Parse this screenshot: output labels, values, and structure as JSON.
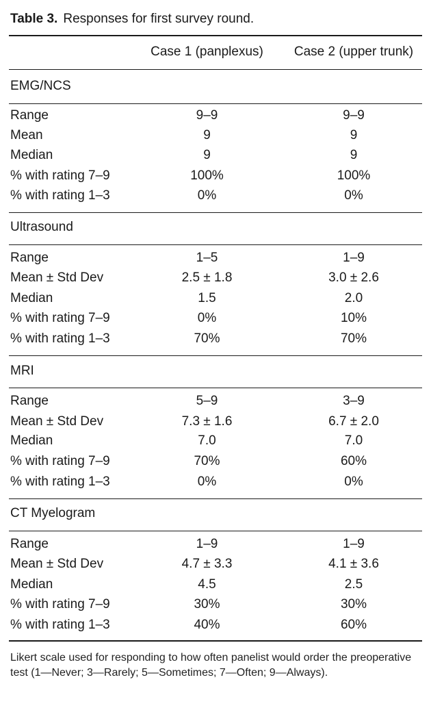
{
  "caption": {
    "label": "Table 3.",
    "text": "Responses for first survey round."
  },
  "columns": [
    "Case 1 (panplexus)",
    "Case 2 (upper trunk)"
  ],
  "sections": [
    {
      "title": "EMG/NCS",
      "rows": [
        {
          "label": "Range",
          "case1": "9–9",
          "case2": "9–9"
        },
        {
          "label": "Mean",
          "case1": "9",
          "case2": "9"
        },
        {
          "label": "Median",
          "case1": "9",
          "case2": "9"
        },
        {
          "label": "% with rating 7–9",
          "case1": "100%",
          "case2": "100%"
        },
        {
          "label": "% with rating 1–3",
          "case1": "0%",
          "case2": "0%"
        }
      ]
    },
    {
      "title": "Ultrasound",
      "rows": [
        {
          "label": "Range",
          "case1": "1–5",
          "case2": "1–9"
        },
        {
          "label": "Mean ± Std Dev",
          "case1": "2.5 ± 1.8",
          "case2": "3.0 ± 2.6"
        },
        {
          "label": "Median",
          "case1": "1.5",
          "case2": "2.0"
        },
        {
          "label": "% with rating 7–9",
          "case1": "0%",
          "case2": "10%"
        },
        {
          "label": "% with rating 1–3",
          "case1": "70%",
          "case2": "70%"
        }
      ]
    },
    {
      "title": "MRI",
      "rows": [
        {
          "label": "Range",
          "case1": "5–9",
          "case2": "3–9"
        },
        {
          "label": "Mean ± Std Dev",
          "case1": "7.3 ± 1.6",
          "case2": "6.7 ± 2.0"
        },
        {
          "label": "Median",
          "case1": "7.0",
          "case2": "7.0"
        },
        {
          "label": "% with rating 7–9",
          "case1": "70%",
          "case2": "60%"
        },
        {
          "label": "% with rating 1–3",
          "case1": "0%",
          "case2": "0%"
        }
      ]
    },
    {
      "title": "CT Myelogram",
      "rows": [
        {
          "label": "Range",
          "case1": "1–9",
          "case2": "1–9"
        },
        {
          "label": "Mean ± Std Dev",
          "case1": "4.7 ± 3.3",
          "case2": "4.1 ± 3.6"
        },
        {
          "label": "Median",
          "case1": "4.5",
          "case2": "2.5"
        },
        {
          "label": "% with rating 7–9",
          "case1": "30%",
          "case2": "30%"
        },
        {
          "label": "% with rating 1–3",
          "case1": "40%",
          "case2": "60%"
        }
      ]
    }
  ],
  "footnote": "Likert scale used for responding to how often panelist would order the preoperative test (1—Never; 3—Rarely; 5—Sometimes; 7—Often; 9—Always)."
}
